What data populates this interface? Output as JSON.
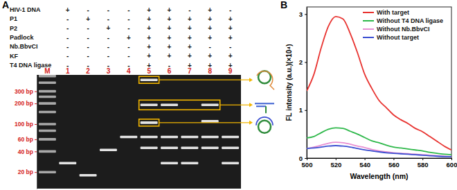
{
  "chart_data": [
    {
      "type": "gel",
      "title": "A",
      "table": [
        {
          "label": "HIV-1 DNA",
          "signs": [
            "+",
            "-",
            "-",
            "-",
            "+",
            "+",
            "-",
            "+",
            "-"
          ]
        },
        {
          "label": "P1",
          "signs": [
            "-",
            "+",
            "-",
            "-",
            "+",
            "+",
            "+",
            "+",
            "+"
          ]
        },
        {
          "label": "P2",
          "signs": [
            "-",
            "-",
            "+",
            "-",
            "+",
            "+",
            "+",
            "+",
            "+"
          ]
        },
        {
          "label": "Padlock",
          "signs": [
            "-",
            "-",
            "-",
            "+",
            "+",
            "+",
            "+",
            "+",
            "+"
          ]
        },
        {
          "label": "Nb.BbvCI",
          "signs": [
            "-",
            "-",
            "-",
            "-",
            "+",
            "+",
            "+",
            "-",
            "-"
          ]
        },
        {
          "label": "KF",
          "signs": [
            "-",
            "-",
            "-",
            "-",
            "+",
            "+",
            "+",
            "+",
            "+"
          ]
        },
        {
          "label": "T4 DNA ligase",
          "signs": [
            "-",
            "-",
            "-",
            "-",
            "+",
            "-",
            "+",
            "+",
            "+"
          ]
        }
      ],
      "lanes": [
        "M",
        "1",
        "2",
        "3",
        "4",
        "5",
        "6",
        "7",
        "8",
        "9"
      ],
      "bands": [
        [
          500,
          400,
          300,
          250,
          200,
          150,
          100,
          80,
          60,
          40,
          20
        ],
        [
          27
        ],
        [
          18
        ],
        [
          42
        ],
        [
          65
        ],
        [
          440,
          190,
          105,
          65,
          45
        ],
        [
          190,
          65,
          45,
          27
        ],
        [
          65,
          45,
          27
        ],
        [
          190,
          110,
          65,
          45
        ],
        [
          65,
          45,
          27
        ]
      ],
      "log": "y",
      "ylim": [
        520,
        11.5
      ],
      "yticks": [
        {
          "value": 300,
          "label": "300 bp"
        },
        {
          "value": 200,
          "label": "200 bp"
        },
        {
          "value": 100,
          "label": "100 bp"
        },
        {
          "value": 60,
          "label": "60 bp"
        },
        {
          "value": 40,
          "label": "40 bp"
        },
        {
          "value": 20,
          "label": "20 bp"
        }
      ]
    },
    {
      "type": "line",
      "title": "B",
      "x_label": "Wavelength (nm)",
      "y_label": "FL intensity (a.u.)(×10⁴)",
      "x": [
        500,
        505,
        510,
        515,
        520,
        525,
        530,
        535,
        540,
        545,
        550,
        555,
        560,
        565,
        570,
        575,
        580,
        585,
        590,
        595,
        600
      ],
      "series": [
        {
          "name": "With target",
          "color": "#e8322f",
          "values": [
            1.4,
            1.75,
            2.3,
            2.75,
            2.95,
            2.9,
            2.6,
            2.2,
            1.75,
            1.45,
            1.2,
            1.05,
            0.9,
            0.8,
            0.72,
            0.62,
            0.55,
            0.45,
            0.35,
            0.25,
            0.17
          ]
        },
        {
          "name": "Without T4 DNA ligase",
          "color": "#2eb84a",
          "values": [
            0.42,
            0.45,
            0.53,
            0.6,
            0.63,
            0.62,
            0.56,
            0.5,
            0.43,
            0.36,
            0.32,
            0.27,
            0.23,
            0.21,
            0.19,
            0.17,
            0.15,
            0.12,
            0.1,
            0.08,
            0.07
          ]
        },
        {
          "name": "Without Nb.BbvCI",
          "color": "#e88fd2",
          "values": [
            0.2,
            0.23,
            0.27,
            0.31,
            0.33,
            0.32,
            0.29,
            0.25,
            0.22,
            0.18,
            0.15,
            0.13,
            0.11,
            0.1,
            0.09,
            0.08,
            0.07,
            0.06,
            0.05,
            0.04,
            0.03
          ]
        },
        {
          "name": "Without target",
          "color": "#3b4fd1",
          "values": [
            0.2,
            0.21,
            0.23,
            0.25,
            0.26,
            0.25,
            0.23,
            0.2,
            0.17,
            0.15,
            0.13,
            0.11,
            0.1,
            0.09,
            0.08,
            0.07,
            0.06,
            0.05,
            0.04,
            0.03,
            0.03
          ]
        }
      ],
      "xlim": [
        500,
        600
      ],
      "xticks": [
        500,
        520,
        540,
        560,
        580,
        600
      ],
      "ylim": [
        0,
        3.15
      ],
      "yticks": [
        0,
        1,
        2,
        3
      ],
      "legend": "top-right"
    }
  ]
}
